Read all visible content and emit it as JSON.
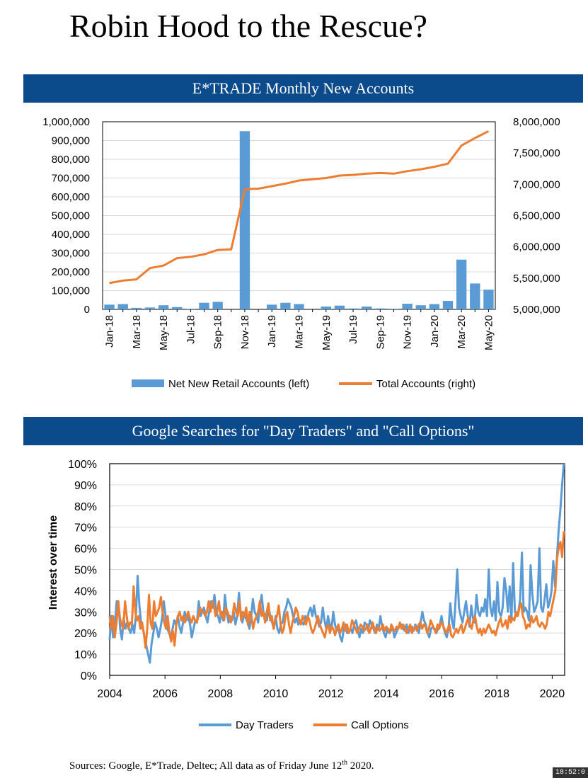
{
  "title": "Robin Hood to the Rescue?",
  "sources": {
    "prefix": "Sources: Google, E*Trade, Deltec; All data as of Friday June 12",
    "superscript": "th",
    "suffix": " 2020."
  },
  "clock": "18:52:0",
  "colors": {
    "banner": "#0b4a8b",
    "blue": "#5b9bd5",
    "orange": "#ed7d31",
    "grid": "#d9d9d9"
  },
  "chart_data": [
    {
      "type": "bar",
      "title": "E*TRADE Monthly New Accounts",
      "categories": [
        "Jan-18",
        "Feb-18",
        "Mar-18",
        "Apr-18",
        "May-18",
        "Jun-18",
        "Jul-18",
        "Aug-18",
        "Sep-18",
        "Oct-18",
        "Nov-18",
        "Dec-18",
        "Jan-19",
        "Feb-19",
        "Mar-19",
        "Apr-19",
        "May-19",
        "Jun-19",
        "Jul-19",
        "Aug-19",
        "Sep-19",
        "Oct-19",
        "Nov-19",
        "Dec-19",
        "Jan-20",
        "Feb-20",
        "Mar-20",
        "Apr-20",
        "May-20"
      ],
      "tick_labels": [
        "Jan-18",
        "Mar-18",
        "May-18",
        "Jul-18",
        "Sep-18",
        "Nov-18",
        "Jan-19",
        "Mar-19",
        "May-19",
        "Jul-19",
        "Sep-19",
        "Nov-19",
        "Jan-20",
        "Mar-20",
        "May-20"
      ],
      "series": [
        {
          "name": "Net New Retail Accounts (left)",
          "type": "bar",
          "axis": "left",
          "values": [
            25000,
            28000,
            8000,
            10000,
            22000,
            12000,
            3000,
            35000,
            40000,
            0,
            950000,
            0,
            25000,
            35000,
            28000,
            0,
            15000,
            20000,
            5000,
            15000,
            5000,
            3000,
            30000,
            22000,
            28000,
            45000,
            265000,
            138000,
            105000
          ]
        },
        {
          "name": "Total Accounts (right)",
          "type": "line",
          "axis": "right",
          "values": [
            5420000,
            5460000,
            5480000,
            5660000,
            5700000,
            5820000,
            5840000,
            5880000,
            5950000,
            5960000,
            6920000,
            6930000,
            6970000,
            7010000,
            7060000,
            7080000,
            7100000,
            7140000,
            7150000,
            7170000,
            7180000,
            7170000,
            7210000,
            7240000,
            7280000,
            7330000,
            7620000,
            7740000,
            7850000
          ]
        }
      ],
      "left_axis": {
        "ylim": [
          0,
          1000000
        ],
        "ticks": [
          "0",
          "100,000",
          "200,000",
          "300,000",
          "400,000",
          "500,000",
          "600,000",
          "700,000",
          "800,000",
          "900,000",
          "1,000,000"
        ]
      },
      "right_axis": {
        "ylim": [
          5000000,
          8000000
        ],
        "ticks": [
          "5,000,000",
          "5,500,000",
          "6,000,000",
          "6,500,000",
          "7,000,000",
          "7,500,000",
          "8,000,000"
        ]
      },
      "legend": [
        "Net New Retail Accounts (left)",
        "Total Accounts (right)"
      ],
      "grid": true
    },
    {
      "type": "line",
      "title": "Google Searches for \"Day Traders\" and \"Call Options\"",
      "ylabel": "Interest over time",
      "xlim": [
        2004,
        2020.45
      ],
      "ylim": [
        0,
        100
      ],
      "x_ticks": [
        "2004",
        "2006",
        "2008",
        "2010",
        "2012",
        "2014",
        "2016",
        "2018",
        "2020"
      ],
      "y_ticks": [
        "0%",
        "10%",
        "20%",
        "30%",
        "40%",
        "50%",
        "60%",
        "70%",
        "80%",
        "90%",
        "100%"
      ],
      "legend": [
        "Day Traders",
        "Call Options"
      ],
      "start_year": 2004,
      "step_years": 0.0833,
      "series": [
        {
          "name": "Day Traders",
          "values": [
            17,
            28,
            18,
            24,
            35,
            35,
            22,
            17,
            27,
            22,
            25,
            22,
            20,
            24,
            20,
            28,
            47,
            33,
            25,
            22,
            18,
            14,
            10,
            6,
            15,
            20,
            25,
            22,
            18,
            22,
            27,
            35,
            28,
            22,
            20,
            18,
            22,
            26,
            24,
            28,
            23,
            20,
            25,
            30,
            26,
            28,
            24,
            18,
            22,
            26,
            25,
            35,
            28,
            30,
            32,
            28,
            25,
            30,
            35,
            32,
            38,
            30,
            28,
            25,
            30,
            26,
            38,
            30,
            25,
            28,
            26,
            30,
            24,
            28,
            39,
            30,
            25,
            29,
            27,
            25,
            22,
            28,
            36,
            30,
            28,
            25,
            33,
            38,
            30,
            28,
            26,
            32,
            28,
            25,
            22,
            28,
            22,
            20,
            24,
            25,
            30,
            32,
            36,
            34,
            32,
            28,
            25,
            27,
            24,
            26,
            25,
            24,
            28,
            26,
            30,
            32,
            28,
            33,
            28,
            26,
            23,
            25,
            32,
            26,
            22,
            28,
            24,
            22,
            30,
            24,
            21,
            22,
            18,
            16,
            22,
            24,
            20,
            21,
            22,
            20,
            24,
            26,
            22,
            18,
            22,
            20,
            25,
            24,
            21,
            26,
            24,
            22,
            20,
            24,
            22,
            28,
            23,
            20,
            18,
            22,
            20,
            21,
            23,
            18,
            20,
            22,
            23,
            24,
            22,
            21,
            24,
            20,
            22,
            23,
            21,
            24,
            22,
            20,
            25,
            30,
            26,
            24,
            20,
            18,
            22,
            23,
            22,
            20,
            22,
            24,
            28,
            23,
            20,
            18,
            22,
            34,
            26,
            22,
            35,
            50,
            32,
            28,
            25,
            30,
            35,
            28,
            23,
            33,
            27,
            25,
            38,
            30,
            28,
            32,
            30,
            36,
            28,
            50,
            32,
            28,
            35,
            26,
            44,
            30,
            28,
            32,
            46,
            40,
            30,
            42,
            26,
            53,
            30,
            28,
            30,
            36,
            58,
            30,
            32,
            30,
            26,
            52,
            38,
            30,
            32,
            35,
            60,
            32,
            30,
            36,
            43,
            32,
            35,
            40,
            54,
            42,
            55,
            68,
            78,
            90,
            100
          ]
        },
        {
          "name": "Call Options",
          "values": [
            28,
            22,
            28,
            18,
            25,
            35,
            27,
            24,
            22,
            35,
            28,
            22,
            25,
            24,
            42,
            30,
            26,
            28,
            22,
            25,
            20,
            13,
            22,
            38,
            25,
            22,
            35,
            28,
            30,
            32,
            37,
            30,
            25,
            22,
            28,
            20,
            16,
            21,
            14,
            24,
            28,
            30,
            26,
            28,
            25,
            28,
            30,
            27,
            25,
            28,
            26,
            25,
            28,
            32,
            30,
            30,
            28,
            30,
            35,
            30,
            35,
            33,
            28,
            30,
            35,
            28,
            30,
            26,
            32,
            30,
            28,
            25,
            28,
            34,
            30,
            28,
            35,
            26,
            30,
            28,
            32,
            24,
            30,
            28,
            22,
            26,
            28,
            30,
            35,
            28,
            30,
            25,
            30,
            34,
            26,
            28,
            22,
            26,
            28,
            33,
            25,
            20,
            22,
            28,
            30,
            24,
            20,
            25,
            28,
            32,
            30,
            26,
            24,
            28,
            26,
            24,
            28,
            26,
            22,
            20,
            22,
            25,
            28,
            24,
            22,
            20,
            18,
            22,
            24,
            20,
            23,
            22,
            19,
            22,
            24,
            20,
            22,
            25,
            21,
            24,
            20,
            22,
            26,
            24,
            22,
            20,
            22,
            24,
            23,
            21,
            22,
            24,
            20,
            22,
            25,
            22,
            20,
            23,
            21,
            22,
            24,
            21,
            23,
            22,
            20,
            24,
            22,
            21,
            23,
            22,
            25,
            22,
            24,
            22,
            20,
            22,
            24,
            20,
            22,
            23,
            21,
            24,
            25,
            22,
            24,
            23,
            20,
            22,
            26,
            24,
            22,
            20,
            24,
            22,
            25,
            24,
            22,
            20,
            22,
            24,
            19,
            18,
            20,
            22,
            20,
            22,
            24,
            20,
            22,
            25,
            27,
            24,
            22,
            26,
            28,
            23,
            20,
            22,
            19,
            22,
            20,
            22,
            24,
            22,
            20,
            21,
            19,
            22,
            25,
            27,
            23,
            24,
            26,
            22,
            28,
            25,
            27,
            26,
            30,
            28,
            32,
            34,
            28,
            26,
            22,
            24,
            23,
            28,
            25,
            26,
            28,
            24,
            23,
            25,
            24,
            22,
            24,
            30,
            28,
            32,
            36,
            40,
            55,
            60,
            63,
            56,
            68
          ]
        }
      ],
      "grid": true
    }
  ]
}
